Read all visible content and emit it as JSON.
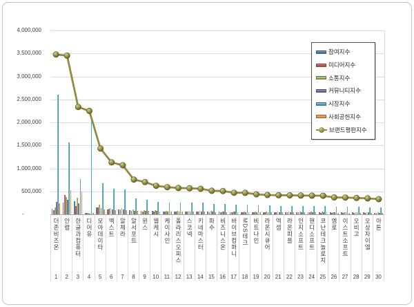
{
  "colors": {
    "background": "#FFFFFF",
    "frame_border": "#C6C6C6",
    "grid": "#DCDCDC",
    "axis": "#A6A6A6",
    "text": "#3F3F3F",
    "legend_border": "#4D4D4D"
  },
  "chart_data": {
    "type": "bar",
    "subtype": "clustered-column-with-line-overlay",
    "title": "",
    "legend_position": "top-right",
    "grid": "horizontal",
    "y_axis": {
      "min": 0,
      "max": 4000000,
      "tick_interval": 500000,
      "tick_labels": [
        "-",
        "500,000",
        "1,000,000",
        "1,500,000",
        "2,000,000",
        "2,500,000",
        "3,000,000",
        "3,500,000",
        "4,000,000"
      ]
    },
    "x_axis": {
      "ranks": [
        "1",
        "2",
        "3",
        "4",
        "5",
        "6",
        "7",
        "8",
        "9",
        "10",
        "11",
        "12",
        "13",
        "14",
        "15",
        "16",
        "17",
        "18",
        "19",
        "20",
        "21",
        "22",
        "23",
        "24",
        "25",
        "26",
        "27",
        "28",
        "29",
        "30"
      ]
    },
    "categories": [
      "더존비즈온",
      "안랩",
      "한글과컴퓨터",
      "디어유",
      "모아데이타",
      "맥스트",
      "알체라",
      "알서포트",
      "윈스",
      "웹케시",
      "케이사인",
      "폴라리스오피스",
      "스코넥",
      "키네마스터",
      "파수",
      "비즈니스온",
      "바이브컴퍼니",
      "MDS테크",
      "비트나인",
      "라온시큐어",
      "엑셈",
      "라온피플",
      "인지소프트",
      "핸디소프트",
      "코난테크놀로지",
      "엠로",
      "이스트소프트",
      "오비고",
      "오상자이엘",
      "아톤"
    ],
    "series": [
      {
        "key": "participation",
        "label": "참여지수",
        "type": "bar",
        "color": "#4878A8",
        "color_light": "#8AAFD4",
        "color_dark": "#2F5D8C",
        "values": [
          118000,
          258000,
          281000,
          28000,
          148000,
          108000,
          101000,
          88000,
          81000,
          72000,
          66000,
          64000,
          63000,
          62000,
          57000,
          57000,
          52000,
          52000,
          48000,
          47000,
          46000,
          46000,
          45000,
          45000,
          45000,
          41000,
          40000,
          39000,
          38000,
          36000
        ]
      },
      {
        "key": "media",
        "label": "미디어지수",
        "type": "bar",
        "color": "#C0504D",
        "color_light": "#D99694",
        "color_dark": "#943634",
        "values": [
          92000,
          417000,
          188000,
          36000,
          157000,
          118000,
          109000,
          71000,
          64000,
          58000,
          56000,
          54000,
          54000,
          53000,
          49000,
          48000,
          45000,
          44000,
          41000,
          39000,
          39000,
          38000,
          38000,
          38000,
          37000,
          34000,
          34000,
          33000,
          32000,
          31000
        ]
      },
      {
        "key": "communication",
        "label": "소통지수",
        "type": "bar",
        "color": "#9BBB59",
        "color_light": "#C3D69B",
        "color_dark": "#77933C",
        "values": [
          143000,
          376000,
          368000,
          31000,
          208000,
          142000,
          131000,
          102000,
          92000,
          84000,
          79000,
          77000,
          76000,
          74000,
          68000,
          67000,
          63000,
          62000,
          58000,
          56000,
          55000,
          55000,
          54000,
          54000,
          53000,
          49000,
          48000,
          47000,
          46000,
          44000
        ]
      },
      {
        "key": "community",
        "label": "커뮤니티지수",
        "type": "bar",
        "color": "#8064A2",
        "color_light": "#B1A0C7",
        "color_dark": "#60497A",
        "values": [
          278000,
          312000,
          236000,
          22000,
          141000,
          109000,
          102000,
          81000,
          76000,
          69000,
          66000,
          64000,
          63000,
          62000,
          58000,
          57000,
          53000,
          52000,
          49000,
          47000,
          47000,
          46000,
          46000,
          45000,
          45000,
          41000,
          41000,
          40000,
          39000,
          37000
        ]
      },
      {
        "key": "market",
        "label": "시장지수",
        "type": "bar",
        "color": "#4BACC6",
        "color_light": "#92CDDC",
        "color_dark": "#31849B",
        "values": [
          2601000,
          1566000,
          762000,
          2103000,
          672000,
          563000,
          536000,
          339000,
          318000,
          273000,
          263000,
          256000,
          255000,
          250000,
          229000,
          227000,
          211000,
          210000,
          196000,
          190000,
          188000,
          187000,
          185000,
          184000,
          183000,
          167000,
          166000,
          162000,
          157000,
          150000
        ]
      },
      {
        "key": "social_contribution",
        "label": "사회공헌지수",
        "type": "bar",
        "color": "#E8953C",
        "color_light": "#FAC08F",
        "color_dark": "#E36C09",
        "values": [
          245000,
          523000,
          501000,
          28000,
          106000,
          91000,
          89000,
          75000,
          71000,
          65000,
          61000,
          58000,
          56000,
          56000,
          52000,
          51000,
          47000,
          47000,
          44000,
          42000,
          42000,
          42000,
          41000,
          41000,
          41000,
          37000,
          37000,
          36000,
          35000,
          33000
        ]
      },
      {
        "key": "brand_reputation",
        "label": "브랜드평판지수",
        "type": "line",
        "color": "#8F8C42",
        "marker_light": "#CDC98C",
        "marker_dark": "#5E5B25",
        "values": [
          3477000,
          3452000,
          2336000,
          2248000,
          1432000,
          1131000,
          1068000,
          756000,
          702000,
          621000,
          591000,
          573000,
          567000,
          557000,
          513000,
          507000,
          471000,
          467000,
          436000,
          421000,
          417000,
          414000,
          409000,
          407000,
          404000,
          369000,
          366000,
          357000,
          347000,
          331000
        ]
      }
    ]
  }
}
